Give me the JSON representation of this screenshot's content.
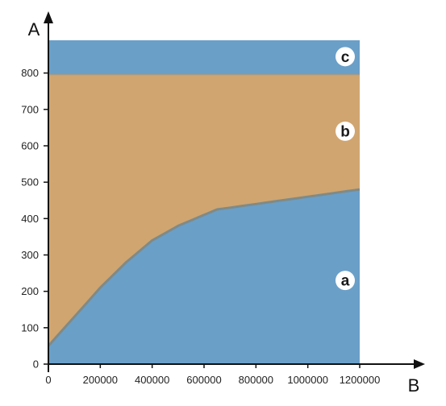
{
  "chart_data": {
    "type": "area",
    "xlabel": "B",
    "ylabel": "A",
    "xlim": [
      0,
      1200000
    ],
    "ylim": [
      0,
      890
    ],
    "x_ticks": [
      "0",
      "200000",
      "400000",
      "600000",
      "800000",
      "1000000",
      "1200000"
    ],
    "y_ticks": [
      "0",
      "100",
      "200",
      "300",
      "400",
      "500",
      "600",
      "700",
      "800"
    ],
    "boundary_b": {
      "x": [
        0,
        50000,
        100000,
        150000,
        200000,
        250000,
        300000,
        350000,
        400000,
        450000,
        500000,
        550000,
        600000,
        650000,
        700000,
        750000,
        800000,
        850000,
        900000,
        950000,
        1000000,
        1050000,
        1100000,
        1150000,
        1200000
      ],
      "y": [
        50,
        90,
        130,
        170,
        210,
        245,
        280,
        310,
        340,
        360,
        380,
        395,
        410,
        425,
        430,
        435,
        440,
        445,
        450,
        455,
        460,
        465,
        470,
        475,
        480
      ]
    },
    "boundary_c": 795,
    "regions": [
      {
        "label": "a",
        "color": "#6a9fc8"
      },
      {
        "label": "b",
        "color": "#d0a56f"
      },
      {
        "label": "c",
        "color": "#6a9fc8"
      }
    ],
    "boundary_line_color": "#7f8a87",
    "axis_color": "#111111"
  }
}
